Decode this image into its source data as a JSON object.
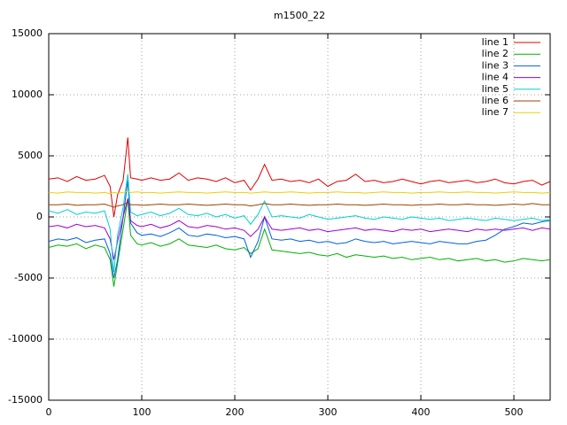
{
  "chart_data": {
    "type": "line",
    "title": "m1500_22",
    "x": [
      0,
      10,
      20,
      30,
      40,
      50,
      60,
      66,
      70,
      74,
      80,
      85,
      88,
      95,
      100,
      110,
      120,
      130,
      140,
      150,
      160,
      170,
      180,
      190,
      200,
      210,
      217,
      225,
      232,
      240,
      250,
      260,
      270,
      280,
      290,
      300,
      310,
      320,
      330,
      340,
      350,
      360,
      370,
      380,
      390,
      400,
      410,
      420,
      430,
      440,
      450,
      460,
      470,
      480,
      490,
      500,
      510,
      520,
      530,
      539
    ],
    "series": [
      {
        "name": "line 1",
        "color": "#e00000",
        "values": [
          3100,
          3200,
          2900,
          3300,
          3000,
          3100,
          3400,
          2500,
          0,
          1800,
          3000,
          6500,
          3200,
          3100,
          3000,
          3200,
          3000,
          3100,
          3600,
          3000,
          3200,
          3100,
          2900,
          3200,
          2800,
          3000,
          2200,
          3100,
          4300,
          3000,
          3100,
          2900,
          3000,
          2800,
          3100,
          2500,
          2900,
          3000,
          3500,
          2900,
          3000,
          2800,
          2900,
          3100,
          2900,
          2700,
          2900,
          3000,
          2800,
          2900,
          3000,
          2800,
          2900,
          3100,
          2800,
          2700,
          2900,
          3000,
          2600,
          2900
        ]
      },
      {
        "name": "line 2",
        "color": "#00b000",
        "values": [
          -2500,
          -2300,
          -2400,
          -2200,
          -2600,
          -2300,
          -2500,
          -3500,
          -5700,
          -3800,
          -1000,
          1500,
          -1500,
          -2200,
          -2300,
          -2100,
          -2400,
          -2200,
          -1800,
          -2300,
          -2400,
          -2500,
          -2300,
          -2600,
          -2700,
          -2500,
          -3000,
          -2600,
          -1000,
          -2700,
          -2800,
          -2900,
          -3000,
          -2900,
          -3100,
          -3200,
          -3000,
          -3300,
          -3100,
          -3200,
          -3300,
          -3200,
          -3400,
          -3300,
          -3500,
          -3400,
          -3300,
          -3500,
          -3400,
          -3600,
          -3500,
          -3400,
          -3600,
          -3500,
          -3700,
          -3600,
          -3400,
          -3500,
          -3600,
          -3500
        ]
      },
      {
        "name": "line 3",
        "color": "#0060e0",
        "values": [
          -2000,
          -1800,
          -1900,
          -1700,
          -2100,
          -1900,
          -1800,
          -3000,
          -5000,
          -3500,
          0,
          3000,
          -500,
          -1300,
          -1500,
          -1400,
          -1600,
          -1300,
          -900,
          -1500,
          -1600,
          -1400,
          -1500,
          -1700,
          -1600,
          -1800,
          -3300,
          -2000,
          0,
          -1800,
          -1900,
          -1800,
          -2000,
          -1900,
          -2100,
          -2000,
          -2200,
          -2100,
          -1800,
          -2000,
          -2100,
          -2000,
          -2200,
          -2100,
          -2000,
          -2100,
          -2200,
          -2000,
          -2100,
          -2200,
          -2200,
          -2000,
          -1900,
          -1500,
          -1000,
          -800,
          -500,
          -600,
          -400,
          -300
        ]
      },
      {
        "name": "line 4",
        "color": "#a000d0",
        "values": [
          -800,
          -700,
          -900,
          -600,
          -800,
          -700,
          -900,
          -1800,
          -3500,
          -2000,
          0,
          1500,
          -300,
          -700,
          -800,
          -600,
          -900,
          -700,
          -300,
          -800,
          -900,
          -700,
          -800,
          -1000,
          -900,
          -1100,
          -1600,
          -1000,
          0,
          -1000,
          -1100,
          -1000,
          -900,
          -1100,
          -1000,
          -1200,
          -1100,
          -1000,
          -900,
          -1100,
          -1000,
          -1100,
          -1200,
          -1000,
          -1100,
          -1000,
          -1200,
          -1100,
          -1000,
          -1100,
          -1200,
          -1000,
          -1100,
          -1000,
          -1100,
          -1000,
          -900,
          -1100,
          -900,
          -1000
        ]
      },
      {
        "name": "line 5",
        "color": "#00d0d0",
        "values": [
          500,
          300,
          600,
          200,
          400,
          300,
          500,
          -1000,
          -4500,
          -1500,
          800,
          3500,
          400,
          100,
          200,
          400,
          100,
          300,
          700,
          200,
          100,
          300,
          0,
          200,
          -100,
          100,
          -600,
          200,
          1300,
          0,
          100,
          0,
          -100,
          200,
          0,
          -200,
          -100,
          0,
          100,
          -100,
          -200,
          0,
          -100,
          -200,
          0,
          -100,
          -200,
          -100,
          -300,
          -200,
          -100,
          -200,
          -300,
          -100,
          -200,
          -300,
          -200,
          -100,
          -300,
          -200
        ]
      },
      {
        "name": "line 6",
        "color": "#a04000",
        "values": [
          1000,
          1000,
          1050,
          950,
          1000,
          1000,
          1050,
          900,
          800,
          900,
          1000,
          1200,
          1000,
          1000,
          950,
          1000,
          1050,
          1000,
          1000,
          1050,
          1000,
          950,
          1000,
          1050,
          1000,
          1000,
          900,
          1000,
          1100,
          1000,
          1000,
          1050,
          1000,
          950,
          1000,
          1000,
          1050,
          1000,
          1000,
          950,
          1000,
          1050,
          1000,
          1000,
          950,
          1000,
          1000,
          1050,
          1000,
          1000,
          1050,
          1000,
          1000,
          950,
          1000,
          1050,
          1000,
          1100,
          1000,
          1000
        ]
      },
      {
        "name": "line 7",
        "color": "#e8d000",
        "values": [
          2000,
          1950,
          2050,
          2000,
          2000,
          1950,
          2000,
          1900,
          2000,
          1950,
          2000,
          2100,
          2000,
          2050,
          2000,
          2000,
          1950,
          2000,
          2050,
          2000,
          2000,
          1950,
          2000,
          2050,
          2000,
          2000,
          1950,
          2000,
          2050,
          2000,
          2000,
          2050,
          2000,
          1950,
          2000,
          2000,
          2050,
          2000,
          2000,
          1950,
          2000,
          2050,
          2000,
          2000,
          1950,
          2000,
          2000,
          2050,
          2000,
          2000,
          2050,
          2000,
          2000,
          1950,
          2000,
          2050,
          2000,
          2000,
          1950,
          2000
        ]
      }
    ],
    "xlim": [
      0,
      539
    ],
    "ylim": [
      -15000,
      15000
    ],
    "xticks": [
      0,
      100,
      200,
      300,
      400,
      500
    ],
    "yticks": [
      -15000,
      -10000,
      -5000,
      0,
      5000,
      10000,
      15000
    ],
    "grid": true,
    "legend": "top-right"
  }
}
